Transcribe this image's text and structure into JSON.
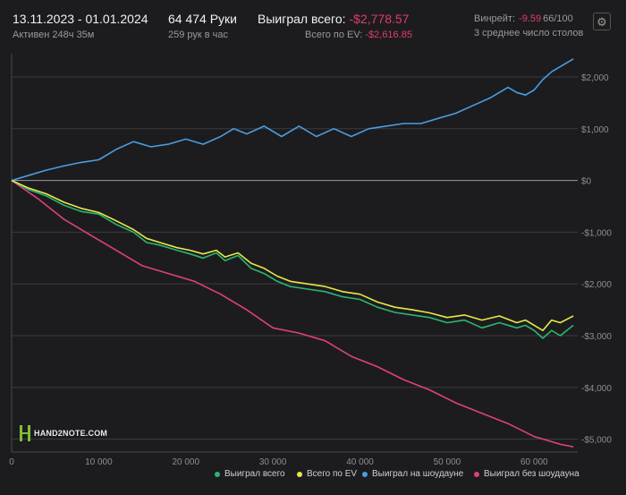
{
  "header": {
    "period": "13.11.2023 - 01.01.2024",
    "active": "Активен 248ч 35м",
    "hands": "64 474 Руки",
    "hands_per_hour": "259 рук в час",
    "won_label": "Выиграл всего:",
    "won_value": "-$2,778.57",
    "ev_label": "Всего по EV:",
    "ev_value": "-$2,616.85",
    "winrate_label": "Винрейт:",
    "winrate_value": "-9.59",
    "winrate_total": "66/100",
    "tables": "3 среднее число столов"
  },
  "icons": {
    "settings": "gear-icon",
    "logo": "hand2note-logo"
  },
  "logo_text": "HAND2NOTE.COM",
  "colors": {
    "background": "#1c1c1e",
    "won_total": "#2bb673",
    "ev_total": "#e8e84a",
    "showdown": "#4a9de0",
    "non_showdown": "#e0407a",
    "negative_text": "#e23b6e"
  },
  "chart_data": {
    "type": "line",
    "xlim": [
      0,
      65000
    ],
    "ylim": [
      -5250,
      2450
    ],
    "x_ticks": [
      0,
      10000,
      20000,
      30000,
      40000,
      50000,
      60000
    ],
    "x_tick_labels": [
      "0",
      "10 000",
      "20 000",
      "30 000",
      "40 000",
      "50 000",
      "60 000"
    ],
    "y_ticks": [
      2000,
      1000,
      0,
      -1000,
      -2000,
      -3000,
      -4000,
      -5000
    ],
    "y_tick_labels": [
      "$2,000",
      "$1,000",
      "$0",
      "-$1,000",
      "-$2,000",
      "-$3,000",
      "-$4,000",
      "-$5,000"
    ],
    "grid": true,
    "legend_position": "bottom-right",
    "series": [
      {
        "name": "Выиграл всего",
        "color": "#2bb673",
        "x": [
          0,
          2000,
          4000,
          6000,
          8000,
          10000,
          12000,
          14000,
          15500,
          17000,
          19000,
          20500,
          22000,
          23500,
          24500,
          26000,
          27500,
          29000,
          30500,
          32000,
          34000,
          36000,
          38000,
          40000,
          42000,
          44000,
          46000,
          48000,
          50000,
          52000,
          54000,
          56000,
          58000,
          59000,
          60000,
          61000,
          62000,
          63000,
          64500
        ],
        "y": [
          0,
          -180,
          -300,
          -480,
          -600,
          -650,
          -850,
          -1000,
          -1200,
          -1250,
          -1350,
          -1420,
          -1500,
          -1400,
          -1550,
          -1450,
          -1700,
          -1800,
          -1950,
          -2050,
          -2100,
          -2150,
          -2250,
          -2300,
          -2450,
          -2550,
          -2600,
          -2650,
          -2750,
          -2700,
          -2850,
          -2750,
          -2850,
          -2800,
          -2900,
          -3050,
          -2900,
          -3000,
          -2800
        ]
      },
      {
        "name": "Всего по EV",
        "color": "#e8e84a",
        "x": [
          0,
          2000,
          4000,
          6000,
          8000,
          10000,
          12000,
          14000,
          15500,
          17000,
          19000,
          20500,
          22000,
          23500,
          24500,
          26000,
          27500,
          29000,
          30500,
          32000,
          34000,
          36000,
          38000,
          40000,
          42000,
          44000,
          46000,
          48000,
          50000,
          52000,
          54000,
          56000,
          58000,
          59000,
          60000,
          61000,
          62000,
          63000,
          64500
        ],
        "y": [
          0,
          -150,
          -260,
          -420,
          -540,
          -620,
          -780,
          -950,
          -1120,
          -1200,
          -1300,
          -1350,
          -1420,
          -1350,
          -1480,
          -1400,
          -1600,
          -1700,
          -1850,
          -1950,
          -2000,
          -2050,
          -2150,
          -2200,
          -2350,
          -2450,
          -2500,
          -2560,
          -2650,
          -2600,
          -2700,
          -2620,
          -2750,
          -2700,
          -2800,
          -2900,
          -2700,
          -2750,
          -2620
        ]
      },
      {
        "name": "Выиграл на шоудауне",
        "color": "#4a9de0",
        "x": [
          0,
          2000,
          4000,
          6000,
          8000,
          10000,
          12000,
          14000,
          16000,
          18000,
          20000,
          22000,
          24000,
          25500,
          27000,
          29000,
          31000,
          33000,
          35000,
          37000,
          39000,
          41000,
          43000,
          45000,
          47000,
          49000,
          51000,
          53000,
          55000,
          57000,
          58000,
          59000,
          60000,
          61000,
          62000,
          63000,
          64500
        ],
        "y": [
          0,
          100,
          200,
          280,
          350,
          400,
          600,
          750,
          650,
          700,
          800,
          700,
          850,
          1000,
          900,
          1050,
          850,
          1050,
          850,
          1000,
          850,
          1000,
          1050,
          1100,
          1100,
          1200,
          1300,
          1450,
          1600,
          1800,
          1700,
          1650,
          1750,
          1950,
          2100,
          2200,
          2350
        ]
      },
      {
        "name": "Выиграл без шоудауна",
        "color": "#e0407a",
        "x": [
          0,
          3000,
          6000,
          9000,
          12000,
          15000,
          18000,
          21000,
          24000,
          27000,
          30000,
          33000,
          36000,
          39000,
          42000,
          45000,
          48000,
          51000,
          54000,
          57000,
          60000,
          62000,
          63000,
          64500
        ],
        "y": [
          0,
          -350,
          -750,
          -1050,
          -1350,
          -1650,
          -1800,
          -1950,
          -2200,
          -2500,
          -2850,
          -2950,
          -3100,
          -3400,
          -3600,
          -3850,
          -4050,
          -4300,
          -4500,
          -4700,
          -4950,
          -5050,
          -5100,
          -5150
        ]
      }
    ]
  }
}
